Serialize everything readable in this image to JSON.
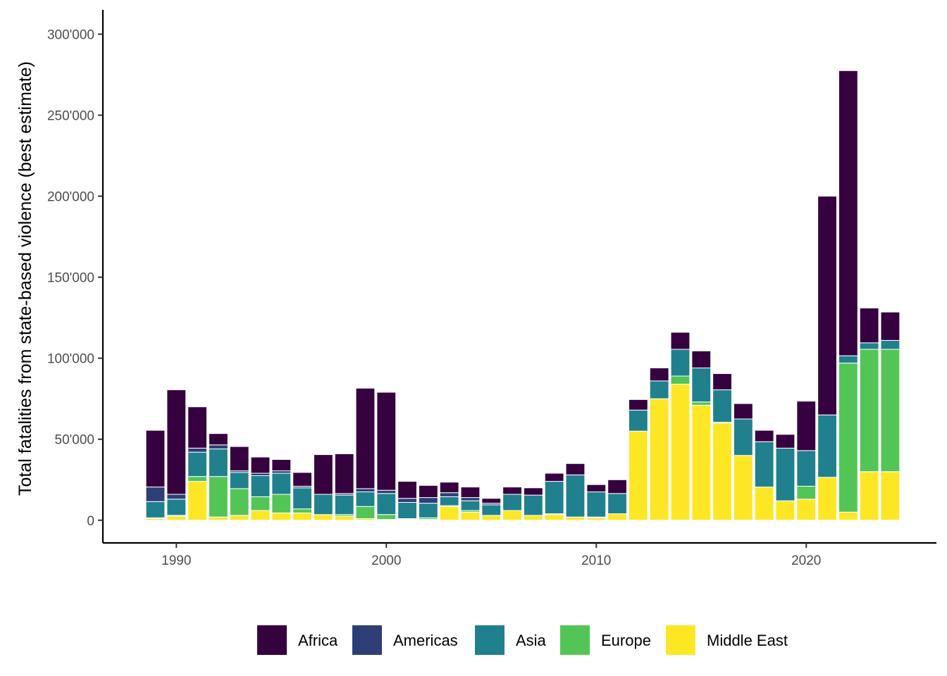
{
  "chart_data": {
    "type": "bar",
    "stacked": true,
    "title": "",
    "xlabel": "",
    "ylabel": "Total fatalities from state-based violence (best estimate)",
    "ylim": [
      -14000,
      315000
    ],
    "xlim": [
      1986.5,
      2026.2
    ],
    "grid": false,
    "legend_position": "bottom",
    "x_ticks": [
      {
        "value": 1990,
        "label": "1990"
      },
      {
        "value": 2000,
        "label": "2000"
      },
      {
        "value": 2010,
        "label": "2010"
      },
      {
        "value": 2020,
        "label": "2020"
      }
    ],
    "y_ticks": [
      {
        "value": 0,
        "label": "0"
      },
      {
        "value": 50000,
        "label": "50'000"
      },
      {
        "value": 100000,
        "label": "100'000"
      },
      {
        "value": 150000,
        "label": "150'000"
      },
      {
        "value": 200000,
        "label": "200'000"
      },
      {
        "value": 250000,
        "label": "250'000"
      },
      {
        "value": 300000,
        "label": "300'000"
      }
    ],
    "x": [
      1989,
      1990,
      1991,
      1992,
      1993,
      1994,
      1995,
      1996,
      1997,
      1998,
      1999,
      2000,
      2001,
      2002,
      2003,
      2004,
      2005,
      2006,
      2007,
      2008,
      2009,
      2010,
      2011,
      2012,
      2013,
      2014,
      2015,
      2016,
      2017,
      2018,
      2019,
      2020,
      2021,
      2022,
      2023,
      2024
    ],
    "series": [
      {
        "name": "Middle East",
        "color": "#FDE725",
        "values": [
          1000,
          2500,
          24000,
          2000,
          3000,
          6000,
          4500,
          4500,
          3500,
          2500,
          1000,
          500,
          500,
          500,
          8500,
          5000,
          3000,
          6000,
          3000,
          3500,
          2000,
          1500,
          4000,
          55000,
          75000,
          84000,
          71000,
          60000,
          40000,
          20500,
          12000,
          13000,
          26500,
          5000,
          30000,
          30000
        ]
      },
      {
        "name": "Europe",
        "color": "#53C557",
        "values": [
          500,
          500,
          3000,
          25000,
          16500,
          8500,
          11500,
          2500,
          0,
          1000,
          7500,
          3000,
          500,
          1000,
          500,
          1000,
          0,
          0,
          0,
          500,
          0,
          500,
          0,
          0,
          0,
          5000,
          2000,
          500,
          0,
          0,
          0,
          8000,
          0,
          92000,
          75500,
          75500
        ]
      },
      {
        "name": "Asia",
        "color": "#21808D",
        "values": [
          10000,
          10000,
          15000,
          17000,
          10000,
          13000,
          13000,
          13000,
          12500,
          12000,
          9000,
          13000,
          10000,
          9000,
          5500,
          6000,
          6500,
          10000,
          12500,
          20000,
          26000,
          15500,
          12500,
          13000,
          11000,
          16500,
          21000,
          20000,
          22500,
          28000,
          32500,
          22000,
          38500,
          4500,
          4000,
          5500
        ]
      },
      {
        "name": "Americas",
        "color": "#2D3F76",
        "values": [
          9000,
          3000,
          2500,
          2500,
          1000,
          1500,
          1500,
          1000,
          0,
          1000,
          2000,
          2000,
          2500,
          3500,
          2500,
          2000,
          1000,
          0,
          0,
          0,
          0,
          0,
          0,
          0,
          0,
          0,
          0,
          0,
          0,
          0,
          0,
          0,
          0,
          0,
          0,
          0
        ]
      },
      {
        "name": "Africa",
        "color": "#36013F",
        "values": [
          35000,
          64500,
          25500,
          7000,
          15000,
          10000,
          7000,
          8500,
          24500,
          24500,
          62000,
          60500,
          10500,
          7500,
          6500,
          6500,
          3000,
          4500,
          4500,
          5000,
          7000,
          4500,
          8500,
          6500,
          8000,
          10500,
          10500,
          10000,
          9500,
          7000,
          8500,
          30500,
          135000,
          176000,
          21500,
          17500
        ]
      }
    ],
    "legend": [
      {
        "name": "Africa",
        "color": "#36013F"
      },
      {
        "name": "Americas",
        "color": "#2D3F76"
      },
      {
        "name": "Asia",
        "color": "#21808D"
      },
      {
        "name": "Europe",
        "color": "#53C557"
      },
      {
        "name": "Middle East",
        "color": "#FDE725"
      }
    ]
  }
}
